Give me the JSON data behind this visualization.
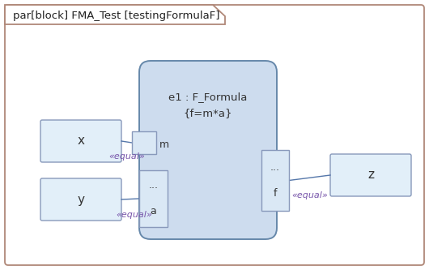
{
  "bg_color": "#ffffff",
  "title_text": "par[block] FMA_Test [testingFormulaF]",
  "main_label1": "e1 : F_Formula",
  "main_label2": "{f=m*a}",
  "label_x": "x",
  "label_y": "y",
  "label_z": "z",
  "label_m": "m",
  "label_a": "a",
  "label_f": "f",
  "label_dots": "...",
  "label_dots2": "...",
  "equal_x": "«equal»",
  "equal_y": "«equal»",
  "equal_z": "«equal»",
  "outer_border": "#b08878",
  "box_fill": "#d6e8f7",
  "box_fill_light": "#e2eff9",
  "box_border": "#8899bb",
  "main_fill": "#cddcee",
  "main_border": "#6688aa",
  "port_fill": "#dae8f5",
  "port_border": "#8899bb",
  "line_color": "#5577aa",
  "stereotype_color": "#7755aa"
}
